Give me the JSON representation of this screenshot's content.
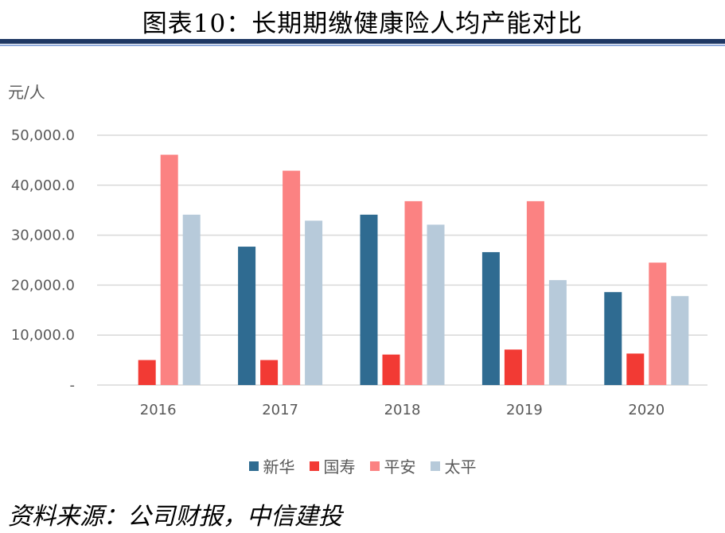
{
  "title": "图表10：长期期缴健康险人均产能对比",
  "unit_label": "元/人",
  "source": "资料来源：公司财报，中信建投",
  "chart_data": {
    "type": "bar",
    "categories": [
      "2016",
      "2017",
      "2018",
      "2019",
      "2020"
    ],
    "series": [
      {
        "name": "新华",
        "color": "#2f6b91",
        "values": [
          0,
          27700,
          34100,
          26600,
          18600
        ]
      },
      {
        "name": "国寿",
        "color": "#f23a34",
        "values": [
          5000,
          5000,
          6100,
          7100,
          6300
        ]
      },
      {
        "name": "平安",
        "color": "#fb8282",
        "values": [
          46100,
          42900,
          36800,
          36800,
          24500
        ]
      },
      {
        "name": "太平",
        "color": "#b7cada",
        "values": [
          34100,
          32900,
          32100,
          21000,
          17800
        ]
      }
    ],
    "ylim": [
      0,
      50000
    ],
    "yticks": [
      0,
      10000,
      20000,
      30000,
      40000,
      50000
    ],
    "ytick_labels": [
      "-",
      "10,000.0",
      "20,000.0",
      "30,000.0",
      "40,000.0",
      "50,000.0"
    ],
    "grid": true,
    "legend": "bottom"
  }
}
